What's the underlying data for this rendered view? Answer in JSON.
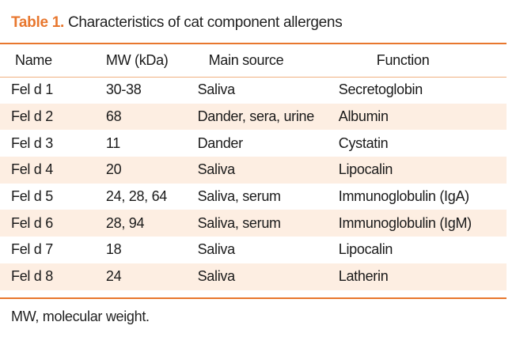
{
  "caption": {
    "label": "Table 1.",
    "text": "Characteristics of cat component allergens"
  },
  "table": {
    "headers": [
      "Name",
      "MW (kDa)",
      "Main source",
      "Function"
    ],
    "rows": [
      [
        "Fel d 1",
        "30-38",
        "Saliva",
        "Secretoglobin"
      ],
      [
        "Fel d 2",
        "68",
        "Dander, sera, urine",
        "Albumin"
      ],
      [
        "Fel d 3",
        "11",
        "Dander",
        "Cystatin"
      ],
      [
        "Fel d 4",
        "20",
        "Saliva",
        "Lipocalin"
      ],
      [
        "Fel d 5",
        "24, 28, 64",
        "Saliva, serum",
        "Immunoglobulin (IgA)"
      ],
      [
        "Fel d 6",
        "28, 94",
        "Saliva, serum",
        "Immunoglobulin (IgM)"
      ],
      [
        "Fel d 7",
        "18",
        "Saliva",
        "Lipocalin"
      ],
      [
        "Fel d 8",
        "24",
        "Saliva",
        "Latherin"
      ]
    ]
  },
  "footnote": "MW, molecular weight.",
  "colors": {
    "accent": "#e8772e",
    "row_shade": "#fdeee2"
  }
}
